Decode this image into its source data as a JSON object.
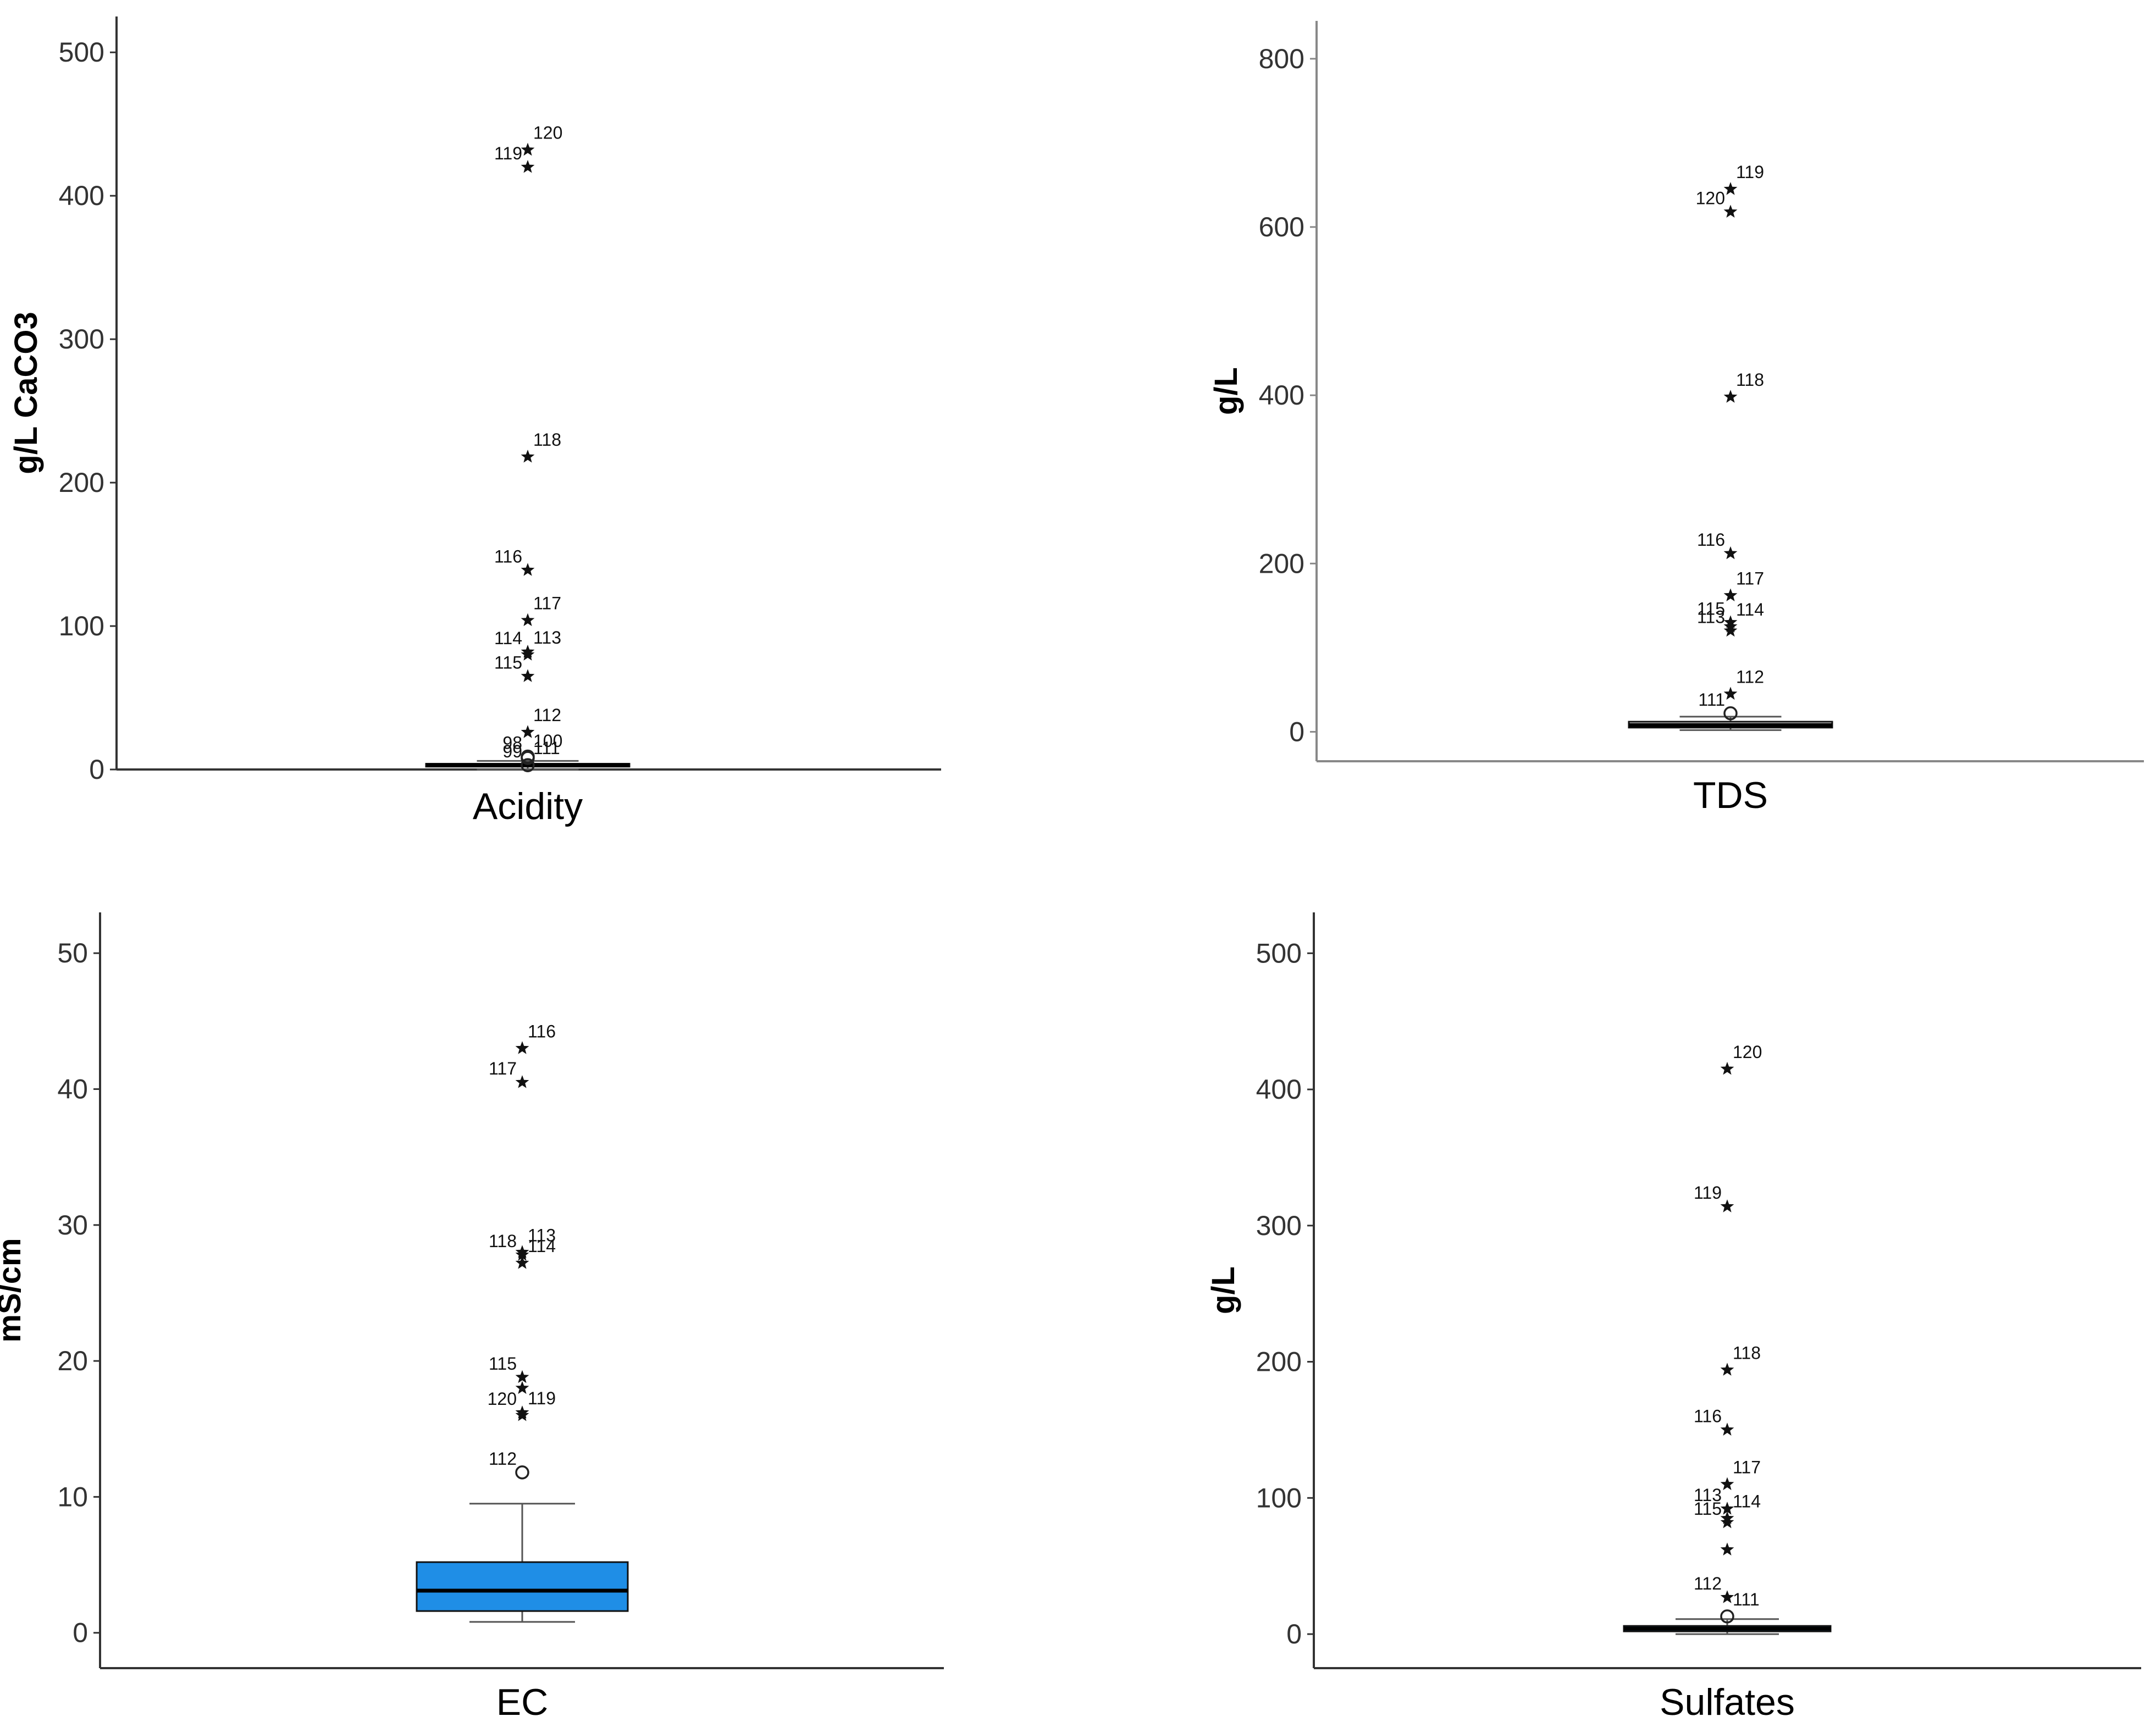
{
  "chart_data": [
    {
      "type": "box",
      "xlabel": "Acidity",
      "ylabel": "g/L CaCO3",
      "ylim": [
        0,
        525
      ],
      "yticks": [
        0,
        100,
        200,
        300,
        400,
        500
      ],
      "grid": false,
      "box_color": "#ffffff",
      "box": {
        "q1": 2,
        "median": 3,
        "q3": 4,
        "whisker_low": 0,
        "whisker_high": 6
      },
      "outliers": [
        {
          "value": 432,
          "label": "120",
          "marker": "star"
        },
        {
          "value": 420,
          "label": "119",
          "marker": "star"
        },
        {
          "value": 218,
          "label": "118",
          "marker": "star"
        },
        {
          "value": 139,
          "label": "116",
          "marker": "star"
        },
        {
          "value": 104,
          "label": "117",
          "marker": "star"
        },
        {
          "value": 82,
          "label": "114",
          "marker": "star"
        },
        {
          "value": 80,
          "label": "113",
          "marker": "star"
        },
        {
          "value": 65,
          "label": "115",
          "marker": "star"
        },
        {
          "value": 26,
          "label": "112",
          "marker": "star"
        },
        {
          "value": 9,
          "label": "98",
          "marker": "circle"
        },
        {
          "value": 8,
          "label": "100",
          "marker": "circle"
        },
        {
          "value": 3,
          "label": "99",
          "marker": "circle"
        },
        {
          "value": 3,
          "label": "111",
          "marker": "circle"
        }
      ]
    },
    {
      "type": "box",
      "xlabel": "TDS",
      "ylabel": "g/L",
      "ylim": [
        -35,
        845
      ],
      "yticks": [
        0,
        200,
        400,
        600,
        800
      ],
      "grid": false,
      "box_color": "#ffffff",
      "box": {
        "q1": 5,
        "median": 8,
        "q3": 12,
        "whisker_low": 2,
        "whisker_high": 18
      },
      "outliers": [
        {
          "value": 645,
          "label": "119",
          "marker": "star"
        },
        {
          "value": 618,
          "label": "120",
          "marker": "star"
        },
        {
          "value": 398,
          "label": "118",
          "marker": "star"
        },
        {
          "value": 212,
          "label": "116",
          "marker": "star"
        },
        {
          "value": 162,
          "label": "117",
          "marker": "star"
        },
        {
          "value": 130,
          "label": "115",
          "marker": "star"
        },
        {
          "value": 125,
          "label": "114",
          "marker": "star"
        },
        {
          "value": 120,
          "label": "113",
          "marker": "star"
        },
        {
          "value": 45,
          "label": "112",
          "marker": "star"
        },
        {
          "value": 22,
          "label": "111",
          "marker": "circle"
        }
      ]
    },
    {
      "type": "box",
      "xlabel": "EC",
      "ylabel": "mS/cm",
      "ylim": [
        -2.6,
        53
      ],
      "yticks": [
        0,
        10,
        20,
        30,
        40,
        50
      ],
      "grid": false,
      "box_color": "#1f8ee6",
      "box": {
        "q1": 1.6,
        "median": 3.1,
        "q3": 5.2,
        "whisker_low": 0.8,
        "whisker_high": 9.5
      },
      "outliers": [
        {
          "value": 43,
          "label": "116",
          "marker": "star"
        },
        {
          "value": 40.5,
          "label": "117",
          "marker": "star"
        },
        {
          "value": 28,
          "label": "113",
          "marker": "star"
        },
        {
          "value": 27.8,
          "label": "118",
          "marker": "star"
        },
        {
          "value": 27.2,
          "label": "114",
          "marker": "star"
        },
        {
          "value": 18.8,
          "label": "115",
          "marker": "star"
        },
        {
          "value": 18,
          "label": "",
          "marker": "star"
        },
        {
          "value": 16.2,
          "label": "120",
          "marker": "star"
        },
        {
          "value": 16,
          "label": "119",
          "marker": "star"
        },
        {
          "value": 11.8,
          "label": "112",
          "marker": "circle"
        }
      ]
    },
    {
      "type": "box",
      "xlabel": "Sulfates",
      "ylabel": "g/L",
      "ylim": [
        -25,
        530
      ],
      "yticks": [
        0,
        100,
        200,
        300,
        400,
        500
      ],
      "grid": false,
      "box_color": "#1f8ee6",
      "box": {
        "q1": 2,
        "median": 4,
        "q3": 6,
        "whisker_low": 0,
        "whisker_high": 11
      },
      "outliers": [
        {
          "value": 415,
          "label": "120",
          "marker": "star"
        },
        {
          "value": 314,
          "label": "119",
          "marker": "star"
        },
        {
          "value": 194,
          "label": "118",
          "marker": "star"
        },
        {
          "value": 150,
          "label": "116",
          "marker": "star"
        },
        {
          "value": 110,
          "label": "117",
          "marker": "star"
        },
        {
          "value": 92,
          "label": "113",
          "marker": "star"
        },
        {
          "value": 85,
          "label": "114",
          "marker": "star"
        },
        {
          "value": 82,
          "label": "115",
          "marker": "star"
        },
        {
          "value": 62,
          "label": "",
          "marker": "star"
        },
        {
          "value": 27,
          "label": "112",
          "marker": "star"
        },
        {
          "value": 13,
          "label": "111",
          "marker": "circle"
        }
      ]
    }
  ]
}
